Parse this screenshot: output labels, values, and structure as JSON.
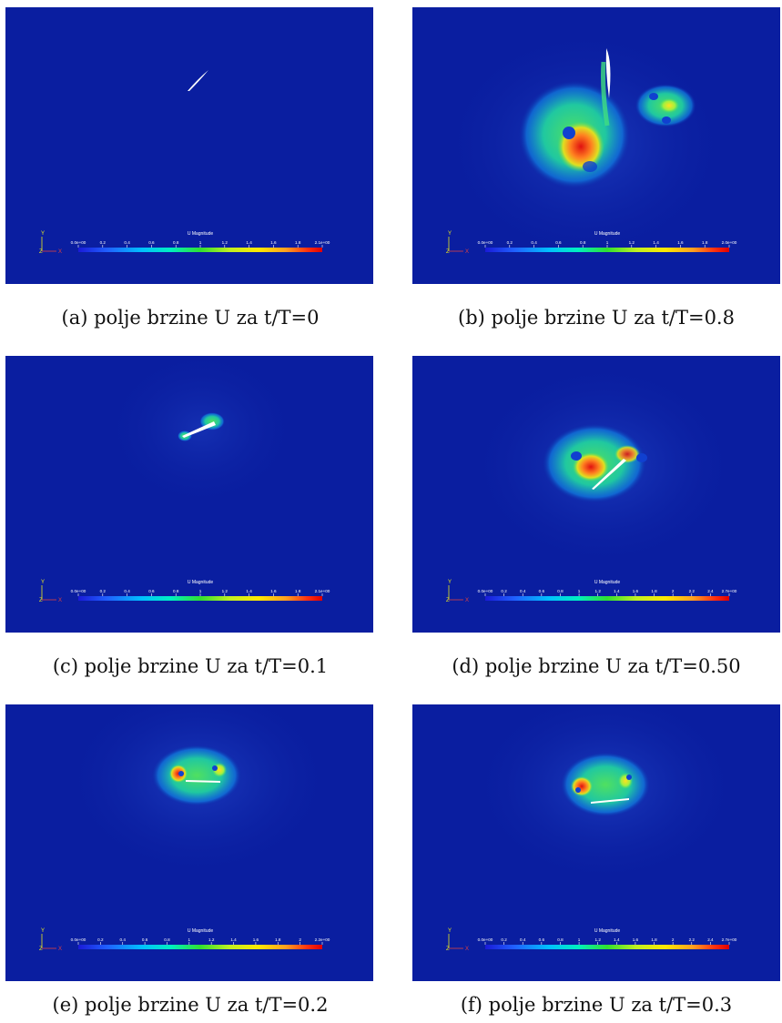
{
  "colors": {
    "background": "#0a1ea0",
    "airfoil": "#ffffff"
  },
  "colorbar_gradient": [
    "#1a1ad8",
    "#2060ff",
    "#00c0ff",
    "#00f0c0",
    "#30e030",
    "#c0f020",
    "#ffe800",
    "#ffa020",
    "#ff3010",
    "#e00000"
  ],
  "panels": [
    {
      "id": "a",
      "caption": "(a) polje brzine U za t/T=0",
      "colorbar": {
        "title": "U Magnitude",
        "ticks": [
          "0.0e+00",
          "0.2",
          "0.4",
          "0.6",
          "0.8",
          "1",
          "1.2",
          "1.4",
          "1.6",
          "1.8",
          "2.1e+00"
        ]
      },
      "axes": {
        "y": "Y",
        "z": "Z",
        "x": "X"
      }
    },
    {
      "id": "b",
      "caption": "(b) polje brzine U za t/T=0.8",
      "colorbar": {
        "title": "U Magnitude",
        "ticks": [
          "0.0e+00",
          "0.2",
          "0.4",
          "0.6",
          "0.8",
          "1",
          "1.2",
          "1.4",
          "1.6",
          "1.8",
          "2.0e+00"
        ]
      },
      "axes": {
        "y": "Y",
        "z": "Z",
        "x": "X"
      }
    },
    {
      "id": "c",
      "caption": "(c) polje brzine U za t/T=0.1",
      "colorbar": {
        "title": "U Magnitude",
        "ticks": [
          "0.0e+00",
          "0.2",
          "0.4",
          "0.6",
          "0.8",
          "1",
          "1.2",
          "1.4",
          "1.6",
          "1.8",
          "2.1e+00"
        ]
      },
      "axes": {
        "y": "Y",
        "z": "Z",
        "x": "X"
      }
    },
    {
      "id": "d",
      "caption": "(d) polje brzine U za t/T=0.50",
      "colorbar": {
        "title": "U Magnitude",
        "ticks": [
          "0.0e+00",
          "0.2",
          "0.4",
          "0.6",
          "0.8",
          "1",
          "1.2",
          "1.4",
          "1.6",
          "1.8",
          "2",
          "2.2",
          "2.4",
          "2.7e+00"
        ]
      },
      "axes": {
        "y": "Y",
        "z": "Z",
        "x": "X"
      }
    },
    {
      "id": "e",
      "caption": "(e) polje brzine U za t/T=0.2",
      "colorbar": {
        "title": "U Magnitude",
        "ticks": [
          "0.0e+00",
          "0.2",
          "0.4",
          "0.6",
          "0.8",
          "1",
          "1.2",
          "1.4",
          "1.6",
          "1.8",
          "2",
          "2.2e+00"
        ]
      },
      "axes": {
        "y": "Y",
        "z": "Z",
        "x": "X"
      }
    },
    {
      "id": "f",
      "caption": "(f) polje brzine U za t/T=0.3",
      "colorbar": {
        "title": "U Magnitude",
        "ticks": [
          "0.0e+00",
          "0.2",
          "0.4",
          "0.6",
          "0.8",
          "1",
          "1.2",
          "1.4",
          "1.6",
          "1.8",
          "2",
          "2.2",
          "2.4",
          "2.7e+00"
        ]
      },
      "axes": {
        "y": "Y",
        "z": "Z",
        "x": "X"
      }
    }
  ]
}
